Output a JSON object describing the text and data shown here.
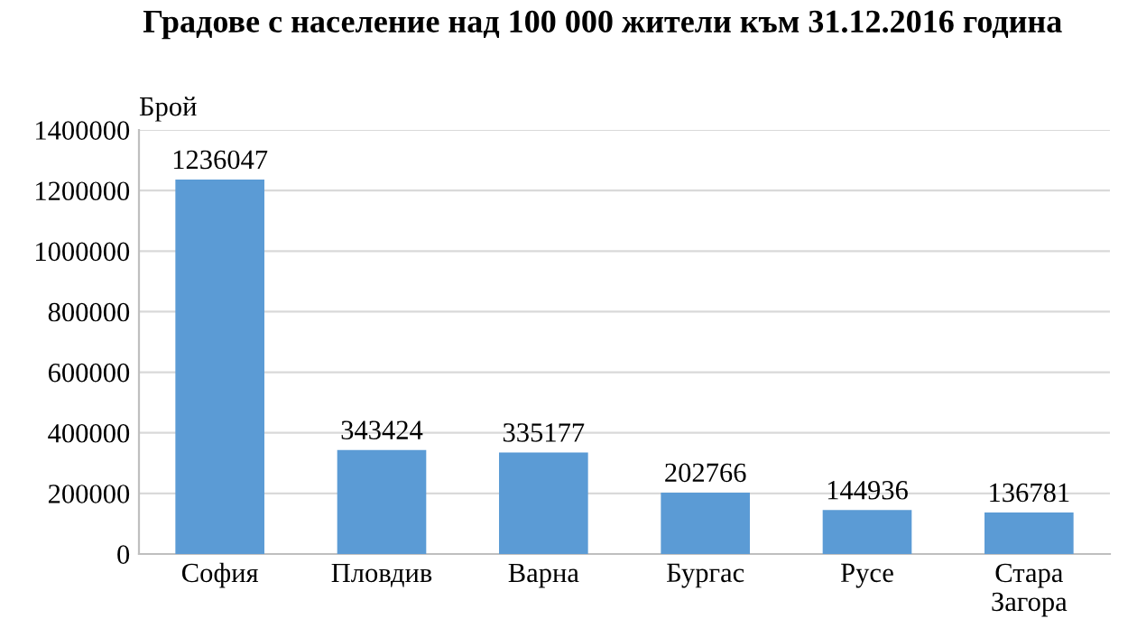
{
  "chart_data": {
    "type": "bar",
    "title": "Градове с население над 100 000 жители към 31.12.2016 година",
    "ylabel": "Брой",
    "categories": [
      "София",
      "Пловдив",
      "Варна",
      "Бургас",
      "Русе",
      "Стара Загора"
    ],
    "values": [
      1236047,
      343424,
      335177,
      202766,
      144936,
      136781
    ],
    "color": "#5b9bd5",
    "ylim": [
      0,
      1400000
    ],
    "yticks": [
      0,
      200000,
      400000,
      600000,
      800000,
      1000000,
      1200000,
      1400000
    ],
    "grid": "y",
    "data_labels": true,
    "legend": false
  }
}
